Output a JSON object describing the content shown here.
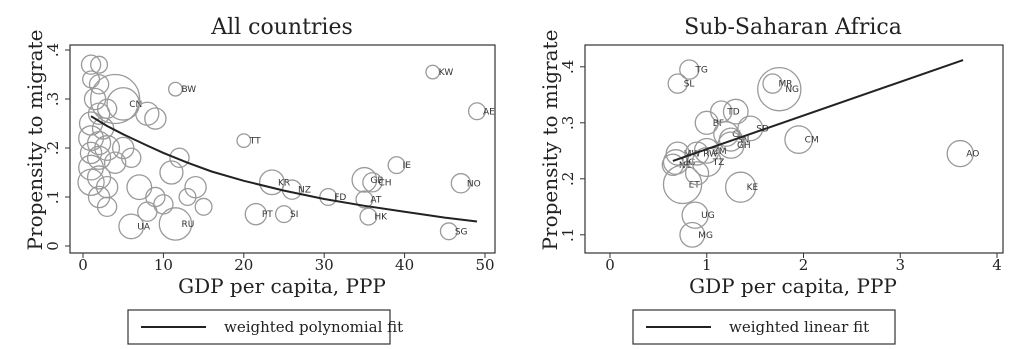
{
  "colors": {
    "marker": "#9a9a9a",
    "fit": "#222222",
    "axis": "#222222",
    "frame": "#333333"
  },
  "chart_data": [
    {
      "type": "scatter",
      "title": "All countries",
      "xlabel": "GDP per capita, PPP",
      "ylabel": "Propensity to migrate",
      "xlim": [
        0,
        50
      ],
      "ylim": [
        0,
        0.4
      ],
      "xticks": [
        0,
        10,
        20,
        30,
        40,
        50
      ],
      "xtick_labels": [
        "0",
        "10",
        "20",
        "30",
        "40",
        "50"
      ],
      "yticks": [
        0,
        0.1,
        0.2,
        0.3,
        0.4
      ],
      "ytick_labels": [
        "0",
        ".1",
        ".2",
        ".3",
        ".4"
      ],
      "grid": false,
      "legend_position": "bottom",
      "legend": [
        "weighted polynomial fit"
      ],
      "fit": {
        "name": "weighted polynomial fit",
        "x": [
          1,
          3,
          5,
          8,
          10,
          13,
          16,
          20,
          25,
          30,
          35,
          40,
          45,
          49
        ],
        "y": [
          0.265,
          0.245,
          0.228,
          0.205,
          0.19,
          0.17,
          0.152,
          0.133,
          0.113,
          0.096,
          0.082,
          0.07,
          0.058,
          0.05
        ]
      },
      "points": [
        {
          "label": "",
          "x": 4,
          "y": 0.3,
          "size": 3.2
        },
        {
          "label": "CN",
          "x": 5,
          "y": 0.29,
          "size": 1.2
        },
        {
          "label": "BW",
          "x": 11.5,
          "y": 0.32,
          "size": 0.1
        },
        {
          "label": "KW",
          "x": 43.5,
          "y": 0.355,
          "size": 0.1
        },
        {
          "label": "AE",
          "x": 49,
          "y": 0.275,
          "size": 0.2
        },
        {
          "label": "TT",
          "x": 20,
          "y": 0.215,
          "size": 0.1
        },
        {
          "label": "IE",
          "x": 39,
          "y": 0.165,
          "size": 0.2
        },
        {
          "label": "GB",
          "x": 35,
          "y": 0.135,
          "size": 0.6
        },
        {
          "label": "CH",
          "x": 36,
          "y": 0.13,
          "size": 0.3
        },
        {
          "label": "NO",
          "x": 47,
          "y": 0.128,
          "size": 0.3
        },
        {
          "label": "KR",
          "x": 23.5,
          "y": 0.13,
          "size": 0.6
        },
        {
          "label": "NZ",
          "x": 26,
          "y": 0.115,
          "size": 0.3
        },
        {
          "label": "FD",
          "x": 30.5,
          "y": 0.1,
          "size": 0.2
        },
        {
          "label": "AT",
          "x": 35,
          "y": 0.095,
          "size": 0.2
        },
        {
          "label": "HK",
          "x": 35.5,
          "y": 0.06,
          "size": 0.2
        },
        {
          "label": "SG",
          "x": 45.5,
          "y": 0.03,
          "size": 0.2
        },
        {
          "label": "PT",
          "x": 21.5,
          "y": 0.065,
          "size": 0.4
        },
        {
          "label": "SI",
          "x": 25,
          "y": 0.065,
          "size": 0.2
        },
        {
          "label": "RU",
          "x": 11.5,
          "y": 0.045,
          "size": 1.2
        },
        {
          "label": "UA",
          "x": 6,
          "y": 0.04,
          "size": 0.6
        },
        {
          "label": "",
          "x": 1,
          "y": 0.37,
          "size": 0.3
        },
        {
          "label": "",
          "x": 2,
          "y": 0.37,
          "size": 0.2
        },
        {
          "label": "",
          "x": 1,
          "y": 0.34,
          "size": 0.2
        },
        {
          "label": "",
          "x": 2,
          "y": 0.33,
          "size": 0.3
        },
        {
          "label": "",
          "x": 1.5,
          "y": 0.3,
          "size": 0.4
        },
        {
          "label": "",
          "x": 3,
          "y": 0.28,
          "size": 0.3
        },
        {
          "label": "",
          "x": 2,
          "y": 0.27,
          "size": 0.4
        },
        {
          "label": "",
          "x": 1,
          "y": 0.25,
          "size": 0.5
        },
        {
          "label": "",
          "x": 2.5,
          "y": 0.24,
          "size": 0.4
        },
        {
          "label": "",
          "x": 8,
          "y": 0.27,
          "size": 0.5
        },
        {
          "label": "",
          "x": 9,
          "y": 0.26,
          "size": 0.4
        },
        {
          "label": "",
          "x": 1,
          "y": 0.22,
          "size": 0.6
        },
        {
          "label": "",
          "x": 2,
          "y": 0.21,
          "size": 0.5
        },
        {
          "label": "",
          "x": 3,
          "y": 0.2,
          "size": 0.6
        },
        {
          "label": "",
          "x": 1,
          "y": 0.19,
          "size": 0.4
        },
        {
          "label": "",
          "x": 2,
          "y": 0.18,
          "size": 0.5
        },
        {
          "label": "",
          "x": 4,
          "y": 0.17,
          "size": 0.4
        },
        {
          "label": "",
          "x": 1,
          "y": 0.16,
          "size": 0.6
        },
        {
          "label": "",
          "x": 2,
          "y": 0.14,
          "size": 0.5
        },
        {
          "label": "",
          "x": 1,
          "y": 0.13,
          "size": 0.7
        },
        {
          "label": "",
          "x": 3,
          "y": 0.12,
          "size": 0.4
        },
        {
          "label": "",
          "x": 2,
          "y": 0.1,
          "size": 0.4
        },
        {
          "label": "",
          "x": 3,
          "y": 0.08,
          "size": 0.3
        },
        {
          "label": "",
          "x": 5,
          "y": 0.2,
          "size": 0.4
        },
        {
          "label": "",
          "x": 6,
          "y": 0.18,
          "size": 0.3
        },
        {
          "label": "",
          "x": 7,
          "y": 0.12,
          "size": 0.6
        },
        {
          "label": "",
          "x": 9,
          "y": 0.1,
          "size": 0.3
        },
        {
          "label": "",
          "x": 10,
          "y": 0.085,
          "size": 0.3
        },
        {
          "label": "",
          "x": 11,
          "y": 0.15,
          "size": 0.5
        },
        {
          "label": "",
          "x": 12,
          "y": 0.18,
          "size": 0.3
        },
        {
          "label": "",
          "x": 14,
          "y": 0.12,
          "size": 0.4
        },
        {
          "label": "",
          "x": 15,
          "y": 0.08,
          "size": 0.2
        },
        {
          "label": "",
          "x": 8,
          "y": 0.07,
          "size": 0.3
        },
        {
          "label": "",
          "x": 13,
          "y": 0.1,
          "size": 0.2
        }
      ]
    },
    {
      "type": "scatter",
      "title": "Sub-Saharan Africa",
      "xlabel": "GDP per capita, PPP",
      "ylabel": "Propensity to migrate",
      "xlim": [
        0,
        4
      ],
      "ylim": [
        0.08,
        0.43
      ],
      "xticks": [
        0,
        1,
        2,
        3,
        4
      ],
      "xtick_labels": [
        "0",
        "1",
        "2",
        "3",
        "4"
      ],
      "yticks": [
        0.1,
        0.2,
        0.3,
        0.4
      ],
      "ytick_labels": [
        ".1",
        ".2",
        ".3",
        ".4"
      ],
      "grid": false,
      "legend_position": "bottom",
      "legend": [
        "weighted linear fit"
      ],
      "fit": {
        "name": "weighted linear fit",
        "x": [
          0.65,
          3.65
        ],
        "y": [
          0.232,
          0.412
        ]
      },
      "points": [
        {
          "label": "TG",
          "x": 0.82,
          "y": 0.395,
          "size": 0.3
        },
        {
          "label": "SL",
          "x": 0.7,
          "y": 0.37,
          "size": 0.3
        },
        {
          "label": "MR",
          "x": 1.68,
          "y": 0.37,
          "size": 0.3
        },
        {
          "label": "NG",
          "x": 1.75,
          "y": 0.36,
          "size": 2.4
        },
        {
          "label": "TD",
          "x": 1.15,
          "y": 0.32,
          "size": 0.4
        },
        {
          "label": "BF",
          "x": 1.0,
          "y": 0.3,
          "size": 0.5
        },
        {
          "label": "",
          "x": 1.3,
          "y": 0.32,
          "size": 0.6
        },
        {
          "label": "CI",
          "x": 1.2,
          "y": 0.28,
          "size": 0.6
        },
        {
          "label": "SN",
          "x": 1.25,
          "y": 0.27,
          "size": 0.5
        },
        {
          "label": "GH",
          "x": 1.25,
          "y": 0.26,
          "size": 0.7
        },
        {
          "label": "SD",
          "x": 1.45,
          "y": 0.29,
          "size": 0.6
        },
        {
          "label": "CM",
          "x": 1.95,
          "y": 0.27,
          "size": 0.8
        },
        {
          "label": "AO",
          "x": 3.62,
          "y": 0.245,
          "size": 0.7
        },
        {
          "label": "ZM",
          "x": 1.0,
          "y": 0.25,
          "size": 0.6
        },
        {
          "label": "MW",
          "x": 0.7,
          "y": 0.245,
          "size": 0.5
        },
        {
          "label": "RW",
          "x": 0.9,
          "y": 0.245,
          "size": 0.5
        },
        {
          "label": "UG",
          "x": 0.68,
          "y": 0.23,
          "size": 0.6
        },
        {
          "label": "TZ",
          "x": 1.0,
          "y": 0.23,
          "size": 0.9
        },
        {
          "label": "NE",
          "x": 0.65,
          "y": 0.225,
          "size": 0.4
        },
        {
          "label": "ET",
          "x": 0.75,
          "y": 0.19,
          "size": 1.8
        },
        {
          "label": "KE",
          "x": 1.35,
          "y": 0.185,
          "size": 1.0
        },
        {
          "label": "",
          "x": 0.9,
          "y": 0.21,
          "size": 0.5
        },
        {
          "label": "UG",
          "x": 0.88,
          "y": 0.135,
          "size": 0.7
        },
        {
          "label": "MG",
          "x": 0.85,
          "y": 0.1,
          "size": 0.6
        }
      ]
    }
  ]
}
